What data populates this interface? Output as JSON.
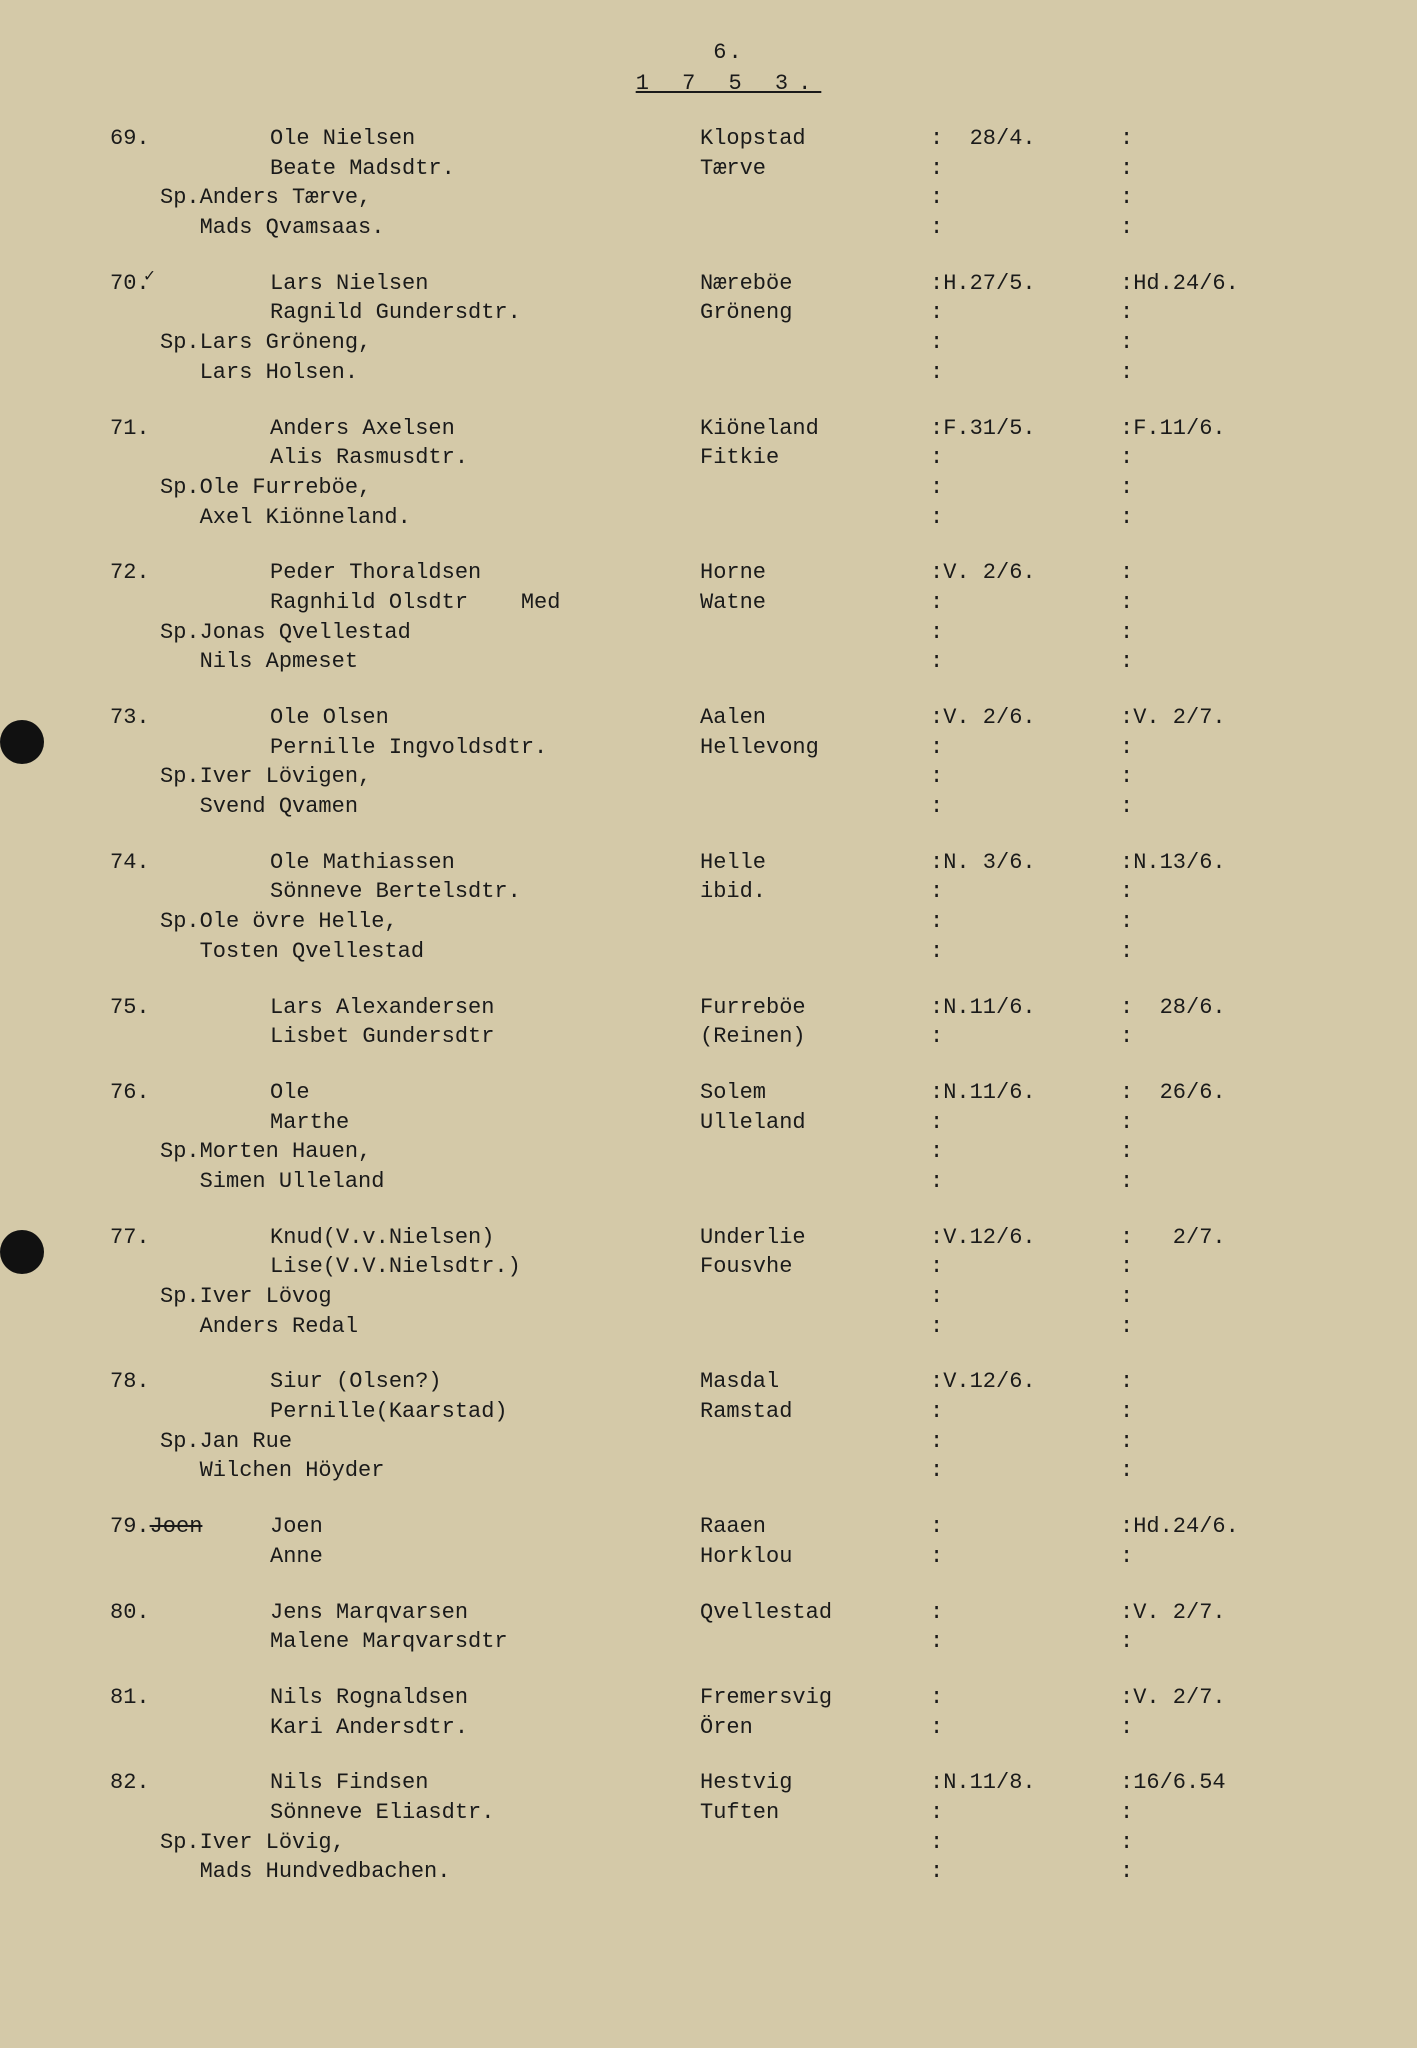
{
  "page_number": "6.",
  "year": "1 7 5 3.",
  "background_color": "#d4c9a8",
  "text_color": "#1a1a1a",
  "font_family": "Courier New",
  "font_size_pt": 16,
  "entries": [
    {
      "num": "69.",
      "groom": "Ole Nielsen",
      "bride": "Beate Madsdtr.",
      "place1": "Klopstad",
      "place2": "Tærve",
      "date1": "  28/4.",
      "date2": "",
      "sponsors": [
        "Sp.Anders Tærve,",
        "   Mads Qvamsaas."
      ]
    },
    {
      "num": "70.",
      "checkmark": true,
      "groom": "Lars Nielsen",
      "bride": "Ragnild Gundersdtr.",
      "place1": "Næreböe",
      "place2": "Gröneng",
      "date1": "H.27/5.",
      "date2": "Hd.24/6.",
      "sponsors": [
        "Sp.Lars Gröneng,",
        "   Lars Holsen."
      ]
    },
    {
      "num": "71.",
      "groom": "Anders Axelsen",
      "bride": "Alis Rasmusdtr.",
      "place1": "Kiöneland",
      "place2": "Fitkie",
      "date1": "F.31/5.",
      "date2": "F.11/6.",
      "sponsors": [
        "Sp.Ole Furreböe,",
        "   Axel Kiönneland."
      ]
    },
    {
      "num": "72.",
      "groom": "Peder Thoraldsen",
      "bride": "Ragnhild Olsdtr    Med",
      "place1": "Horne",
      "place2": "Watne",
      "date1": "V. 2/6.",
      "date2": "",
      "sponsors": [
        "Sp.Jonas Qvellestad",
        "   Nils Apmeset"
      ]
    },
    {
      "num": "73.",
      "groom": "Ole Olsen",
      "bride": "Pernille Ingvoldsdtr.",
      "place1": "Aalen",
      "place2": "Hellevong",
      "date1": "V. 2/6.",
      "date2": "V. 2/7.",
      "sponsors": [
        "Sp.Iver Lövigen,",
        "   Svend Qvamen"
      ]
    },
    {
      "num": "74.",
      "groom": "Ole Mathiassen",
      "bride": "Sönneve Bertelsdtr.",
      "place1": "Helle",
      "place2": "ibid.",
      "date1": "N. 3/6.",
      "date2": "N.13/6.",
      "sponsors": [
        "Sp.Ole övre Helle,",
        "   Tosten Qvellestad"
      ]
    },
    {
      "num": "75.",
      "groom": "Lars Alexandersen",
      "bride": "Lisbet Gundersdtr",
      "place1": "Furreböe",
      "place2": "(Reinen)",
      "date1": "N.11/6.",
      "date2": "  28/6.",
      "sponsors": []
    },
    {
      "num": "76.",
      "groom": "Ole",
      "bride": "Marthe",
      "place1": "Solem",
      "place2": "Ulleland",
      "date1": "N.11/6.",
      "date2": "  26/6.",
      "sponsors": [
        "Sp.Morten Hauen,",
        "   Simen Ulleland"
      ]
    },
    {
      "num": "77.",
      "groom": "Knud(V.v.Nielsen)",
      "bride": "Lise(V.V.Nielsdtr.)",
      "place1": "Underlie",
      "place2": "Fousvhe",
      "date1": "V.12/6.",
      "date2": "   2/7.",
      "sponsors": [
        "Sp.Iver Lövog",
        "   Anders Redal"
      ]
    },
    {
      "num": "78.",
      "groom": "Siur (Olsen?)",
      "bride": "Pernille(Kaarstad)",
      "place1": "Masdal",
      "place2": "Ramstad",
      "date1": "V.12/6.",
      "date2": "",
      "sponsors": [
        "Sp.Jan Rue",
        "   Wilchen Höyder"
      ]
    },
    {
      "num": "79.",
      "num_strike": "Joen",
      "groom": "Joen",
      "bride": "Anne",
      "place1": "Raaen",
      "place2": "Horklou",
      "date1": "",
      "date2": "Hd.24/6.",
      "sponsors": []
    },
    {
      "num": "80.",
      "groom": "Jens Marqvarsen",
      "bride": "Malene Marqvarsdtr",
      "place1": "Qvellestad",
      "place2": "",
      "date1": "",
      "date2": "V. 2/7.",
      "sponsors": []
    },
    {
      "num": "81.",
      "groom": "Nils Rognaldsen",
      "bride": "Kari Andersdtr.",
      "place1": "Fremersvig",
      "place2": "Ören",
      "date1": "",
      "date2": "V. 2/7.",
      "sponsors": []
    },
    {
      "num": "82.",
      "groom": "Nils Findsen",
      "bride": "Sönneve Eliasdtr.",
      "place1": "Hestvig",
      "place2": "Tuften",
      "date1": "N.11/8.",
      "date2": "16/6.54",
      "sponsors": [
        "Sp.Iver Lövig,",
        "   Mads Hundvedbachen."
      ]
    }
  ]
}
